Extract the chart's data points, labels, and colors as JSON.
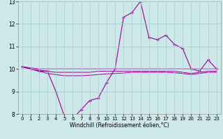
{
  "xlabel": "Windchill (Refroidissement éolien,°C)",
  "x": [
    0,
    1,
    2,
    3,
    4,
    5,
    6,
    7,
    8,
    9,
    10,
    11,
    12,
    13,
    14,
    15,
    16,
    17,
    18,
    19,
    20,
    21,
    22,
    23
  ],
  "line1": [
    10.1,
    10.0,
    9.9,
    9.9,
    9.0,
    7.9,
    7.8,
    8.2,
    8.6,
    8.7,
    9.4,
    10.0,
    12.3,
    12.5,
    13.0,
    11.4,
    11.3,
    11.5,
    11.1,
    10.9,
    10.0,
    9.9,
    10.4,
    10.0
  ],
  "line2": [
    10.1,
    10.05,
    10.0,
    10.0,
    10.0,
    10.0,
    10.0,
    10.0,
    10.0,
    10.0,
    10.0,
    10.0,
    10.0,
    10.0,
    10.0,
    10.0,
    10.0,
    10.0,
    10.0,
    10.0,
    10.0,
    10.0,
    10.0,
    10.0
  ],
  "line3": [
    10.1,
    10.0,
    9.95,
    9.9,
    9.85,
    9.85,
    9.85,
    9.85,
    9.85,
    9.9,
    9.9,
    9.9,
    9.9,
    9.9,
    9.9,
    9.9,
    9.9,
    9.9,
    9.9,
    9.85,
    9.8,
    9.85,
    9.9,
    9.9
  ],
  "line4": [
    10.1,
    10.0,
    9.9,
    9.8,
    9.75,
    9.7,
    9.7,
    9.7,
    9.72,
    9.75,
    9.78,
    9.8,
    9.82,
    9.85,
    9.85,
    9.85,
    9.85,
    9.85,
    9.83,
    9.8,
    9.75,
    9.8,
    9.85,
    9.85
  ],
  "line_color": "#990099",
  "bg_color": "#cce8e8",
  "grid_color": "#aacccc",
  "ylim": [
    8,
    13
  ],
  "yticks": [
    8,
    9,
    10,
    11,
    12,
    13
  ],
  "xticks": [
    0,
    1,
    2,
    3,
    4,
    5,
    6,
    7,
    8,
    9,
    10,
    11,
    12,
    13,
    14,
    15,
    16,
    17,
    18,
    19,
    20,
    21,
    22,
    23
  ]
}
